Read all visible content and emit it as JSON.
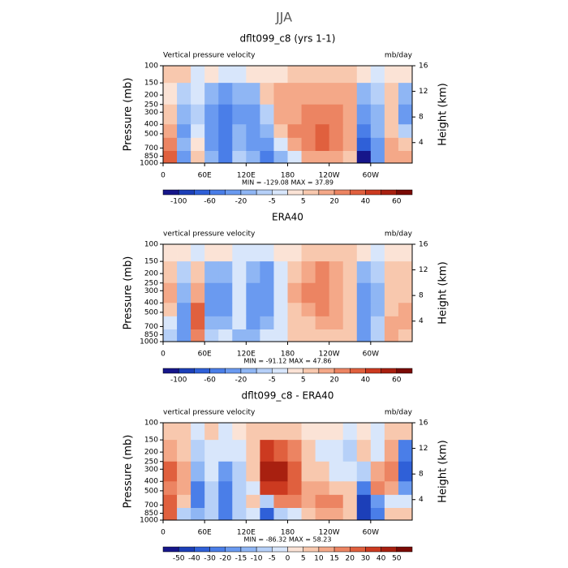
{
  "title": "JJA",
  "chart_data": [
    {
      "type": "contour",
      "title": "dflt099_c8 (yrs 1-1)",
      "annotation_left": "Vertical pressure velocity",
      "annotation_right": "mb/day",
      "ylabel": "Pressure (mb)",
      "y2label": "Height (km)",
      "xlim": [
        0,
        360
      ],
      "xticks": [
        0,
        {
          "value": 60,
          "label": "60E"
        },
        {
          "value": 120,
          "label": "120E"
        },
        {
          "value": 180,
          "label": "180"
        },
        {
          "value": 240,
          "label": "120W"
        },
        {
          "value": 300,
          "label": "60W"
        }
      ],
      "ylim": [
        100,
        1000
      ],
      "ylog": true,
      "yticks": [
        100,
        150,
        200,
        250,
        300,
        400,
        500,
        700,
        850,
        1000
      ],
      "y2lim": [
        0.8,
        16
      ],
      "y2ticks": [
        4,
        8,
        12,
        16
      ],
      "x_edges": [
        0,
        20,
        40,
        60,
        80,
        100,
        120,
        140,
        160,
        180,
        200,
        220,
        240,
        260,
        280,
        300,
        320,
        340,
        360
      ],
      "y_edges": [
        100,
        150,
        250,
        400,
        550,
        750,
        1000
      ],
      "z": [
        [
          5,
          5,
          -5,
          2,
          -5,
          -5,
          2,
          2,
          3,
          5,
          5,
          5,
          5,
          5,
          3,
          -5,
          3,
          3
        ],
        [
          3,
          -10,
          -5,
          -20,
          -30,
          -15,
          -20,
          5,
          10,
          15,
          15,
          10,
          10,
          10,
          -20,
          -10,
          5,
          -15
        ],
        [
          5,
          -20,
          -10,
          -30,
          -50,
          -25,
          -40,
          -10,
          10,
          15,
          20,
          25,
          20,
          10,
          -40,
          -20,
          5,
          -25
        ],
        [
          15,
          -30,
          -5,
          -40,
          -60,
          -20,
          -40,
          -20,
          5,
          20,
          25,
          30,
          25,
          10,
          -60,
          -20,
          5,
          -10
        ],
        [
          25,
          -20,
          2,
          -30,
          -60,
          -20,
          -30,
          -40,
          -5,
          10,
          20,
          30,
          25,
          10,
          -80,
          -30,
          10,
          5
        ],
        [
          35,
          -40,
          5,
          -20,
          -50,
          -10,
          -20,
          -60,
          -20,
          -5,
          10,
          15,
          15,
          5,
          -110,
          -40,
          10,
          10
        ]
      ],
      "levels": [
        -100,
        -80,
        -60,
        -40,
        -20,
        -10,
        -5,
        0,
        5,
        10,
        20,
        30,
        40,
        50,
        60
      ],
      "colorbar_ticks": [
        -100,
        -60,
        -20,
        -5,
        5,
        20,
        40,
        60
      ],
      "colors": [
        "#16168a",
        "#1c3fb8",
        "#2f60d8",
        "#4a7ee8",
        "#6a9af0",
        "#8fb6f4",
        "#b6d0f8",
        "#d8e6fb",
        "#fbe3d6",
        "#f8c8ae",
        "#f4a888",
        "#ec8462",
        "#e0603e",
        "#cc3a20",
        "#a82010",
        "#7a0a05"
      ],
      "stats": "MIN = -129.08   MAX =  37.89"
    },
    {
      "type": "contour",
      "title": "ERA40",
      "annotation_left": "vertical pressure velocity",
      "annotation_right": "mb/day",
      "ylabel": "Pressure (mb)",
      "y2label": "Height (km)",
      "xlim": [
        0,
        360
      ],
      "xticks": [
        0,
        {
          "value": 60,
          "label": "60E"
        },
        {
          "value": 120,
          "label": "120E"
        },
        {
          "value": 180,
          "label": "180"
        },
        {
          "value": 240,
          "label": "120W"
        },
        {
          "value": 300,
          "label": "60W"
        }
      ],
      "ylim": [
        100,
        1000
      ],
      "ylog": true,
      "yticks": [
        100,
        150,
        200,
        250,
        300,
        400,
        500,
        700,
        850,
        1000
      ],
      "y2lim": [
        0.8,
        16
      ],
      "y2ticks": [
        4,
        8,
        12,
        16
      ],
      "x_edges": [
        0,
        20,
        40,
        60,
        80,
        100,
        120,
        140,
        160,
        180,
        200,
        220,
        240,
        260,
        280,
        300,
        320,
        340,
        360
      ],
      "y_edges": [
        100,
        150,
        250,
        400,
        550,
        750,
        1000
      ],
      "z": [
        [
          2,
          2,
          -2,
          2,
          2,
          -2,
          -2,
          -2,
          2,
          2,
          5,
          5,
          5,
          5,
          2,
          -2,
          2,
          2
        ],
        [
          5,
          -10,
          5,
          -15,
          -20,
          -2,
          -20,
          -30,
          -5,
          5,
          15,
          20,
          10,
          5,
          -20,
          -10,
          5,
          5
        ],
        [
          10,
          -20,
          10,
          -30,
          -25,
          -5,
          -40,
          -30,
          -5,
          10,
          20,
          20,
          15,
          5,
          -30,
          -15,
          5,
          5
        ],
        [
          5,
          -30,
          30,
          -30,
          -30,
          -5,
          -40,
          -30,
          -5,
          5,
          10,
          20,
          15,
          5,
          -25,
          -20,
          5,
          10
        ],
        [
          -5,
          -40,
          35,
          -20,
          -20,
          -5,
          -35,
          -20,
          -5,
          5,
          5,
          10,
          10,
          5,
          -30,
          -10,
          10,
          10
        ],
        [
          -10,
          -30,
          20,
          -10,
          -5,
          -20,
          -20,
          -5,
          -5,
          5,
          5,
          5,
          5,
          5,
          -40,
          -10,
          10,
          5
        ]
      ],
      "levels": [
        -100,
        -80,
        -60,
        -40,
        -20,
        -10,
        -5,
        0,
        5,
        10,
        20,
        30,
        40,
        50,
        60
      ],
      "colorbar_ticks": [
        -100,
        -60,
        -20,
        -5,
        5,
        20,
        40,
        60
      ],
      "colors": [
        "#16168a",
        "#1c3fb8",
        "#2f60d8",
        "#4a7ee8",
        "#6a9af0",
        "#8fb6f4",
        "#b6d0f8",
        "#d8e6fb",
        "#fbe3d6",
        "#f8c8ae",
        "#f4a888",
        "#ec8462",
        "#e0603e",
        "#cc3a20",
        "#a82010",
        "#7a0a05"
      ],
      "stats": "MIN = -91.12   MAX =  47.86"
    },
    {
      "type": "contour",
      "title": "dflt099_c8 - ERA40",
      "annotation_left": "vertical pressure velocity",
      "annotation_right": "mb/day",
      "ylabel": "Pressure (mb)",
      "y2label": "Height (km)",
      "xlim": [
        0,
        360
      ],
      "xticks": [
        0,
        {
          "value": 60,
          "label": "60E"
        },
        {
          "value": 120,
          "label": "120E"
        },
        {
          "value": 180,
          "label": "180"
        },
        {
          "value": 240,
          "label": "120W"
        },
        {
          "value": 300,
          "label": "60W"
        }
      ],
      "ylim": [
        100,
        1000
      ],
      "ylog": true,
      "yticks": [
        100,
        150,
        200,
        250,
        300,
        400,
        500,
        700,
        850,
        1000
      ],
      "y2lim": [
        0.8,
        16
      ],
      "y2ticks": [
        4,
        8,
        12,
        16
      ],
      "x_edges": [
        0,
        20,
        40,
        60,
        80,
        100,
        120,
        140,
        160,
        180,
        200,
        220,
        240,
        260,
        280,
        300,
        320,
        340,
        360
      ],
      "y_edges": [
        100,
        150,
        250,
        400,
        550,
        750,
        1000
      ],
      "z": [
        [
          5,
          5,
          -5,
          5,
          -5,
          2,
          5,
          5,
          5,
          5,
          2,
          2,
          2,
          -5,
          2,
          -5,
          5,
          5
        ],
        [
          10,
          5,
          -10,
          -5,
          -5,
          -5,
          5,
          30,
          20,
          15,
          5,
          -5,
          -5,
          -10,
          5,
          -5,
          10,
          -30
        ],
        [
          25,
          10,
          -15,
          -5,
          -20,
          -10,
          5,
          40,
          40,
          25,
          5,
          5,
          -5,
          -5,
          -10,
          10,
          15,
          -40
        ],
        [
          15,
          10,
          -30,
          -10,
          -30,
          -10,
          -5,
          30,
          35,
          20,
          10,
          10,
          5,
          5,
          -30,
          15,
          10,
          -20
        ],
        [
          20,
          5,
          -30,
          -10,
          -30,
          -10,
          5,
          -10,
          15,
          15,
          10,
          15,
          15,
          5,
          -50,
          -20,
          -5,
          -5
        ],
        [
          25,
          -10,
          -15,
          -10,
          -30,
          -10,
          -5,
          -40,
          -10,
          -5,
          5,
          10,
          10,
          5,
          -50,
          -30,
          5,
          5
        ]
      ],
      "levels": [
        -50,
        -40,
        -30,
        -20,
        -15,
        -10,
        -5,
        0,
        5,
        10,
        15,
        20,
        30,
        40,
        50
      ],
      "colorbar_ticks": [
        -50,
        -40,
        -30,
        -20,
        -15,
        -10,
        -5,
        0,
        5,
        10,
        15,
        20,
        30,
        40,
        50
      ],
      "colors": [
        "#16168a",
        "#1c3fb8",
        "#2f60d8",
        "#4a7ee8",
        "#6a9af0",
        "#8fb6f4",
        "#b6d0f8",
        "#d8e6fb",
        "#fbe3d6",
        "#f8c8ae",
        "#f4a888",
        "#ec8462",
        "#e0603e",
        "#cc3a20",
        "#a82010",
        "#7a0a05"
      ],
      "stats": "MIN = -86.32   MAX =  58.23"
    }
  ]
}
